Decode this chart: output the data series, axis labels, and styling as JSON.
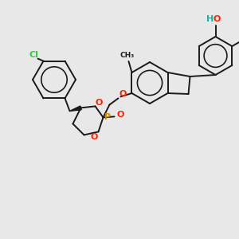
{
  "bg_color": "#e8e8e8",
  "bond_color": "#1a1a1a",
  "cl_color": "#33cc33",
  "o_color": "#ff2200",
  "p_color": "#cc8800",
  "h_color": "#22aaaa",
  "line_width": 1.4,
  "fig_size": [
    3.0,
    3.0
  ],
  "dpi": 100,
  "atoms": {
    "Cl": {
      "color": "#33cc33"
    },
    "O": {
      "color": "#ff2200"
    },
    "P": {
      "color": "#cc8800"
    },
    "H": {
      "color": "#22aaaa"
    }
  }
}
